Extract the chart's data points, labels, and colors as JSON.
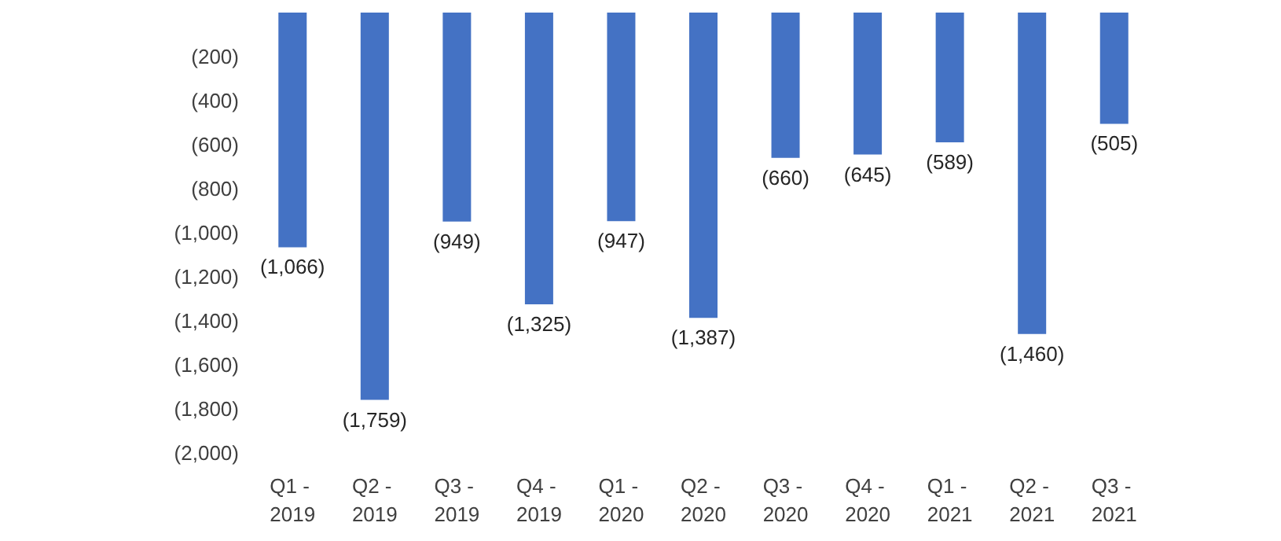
{
  "chart_data": {
    "type": "bar",
    "categories": [
      "Q1 - 2019",
      "Q2 - 2019",
      "Q3 - 2019",
      "Q4 - 2019",
      "Q1 - 2020",
      "Q2 - 2020",
      "Q3 - 2020",
      "Q4 - 2020",
      "Q1 - 2021",
      "Q2 - 2021",
      "Q3 - 2021"
    ],
    "values": [
      -1066,
      -1759,
      -949,
      -1325,
      -947,
      -1387,
      -660,
      -645,
      -589,
      -1460,
      -505
    ],
    "color": "#4472c4",
    "ylim": [
      -2000,
      0
    ],
    "yticks": [
      {
        "value": -2000,
        "label": "(2,000)"
      },
      {
        "value": -1800,
        "label": "(1,800)"
      },
      {
        "value": -1600,
        "label": "(1,600)"
      },
      {
        "value": -1400,
        "label": "(1,400)"
      },
      {
        "value": -1200,
        "label": "(1,200)"
      },
      {
        "value": -1000,
        "label": "(1,000)"
      },
      {
        "value": -800,
        "label": "(800)"
      },
      {
        "value": -600,
        "label": "(600)"
      },
      {
        "value": -400,
        "label": "(400)"
      },
      {
        "value": -200,
        "label": "(200)"
      }
    ],
    "data_labels": true,
    "value_labels": [
      "(1,066)",
      "(1,759)",
      "(949)",
      "(1,325)",
      "(947)",
      "(1,387)",
      "(660)",
      "(645)",
      "(589)",
      "(1,460)",
      "(505)"
    ]
  }
}
